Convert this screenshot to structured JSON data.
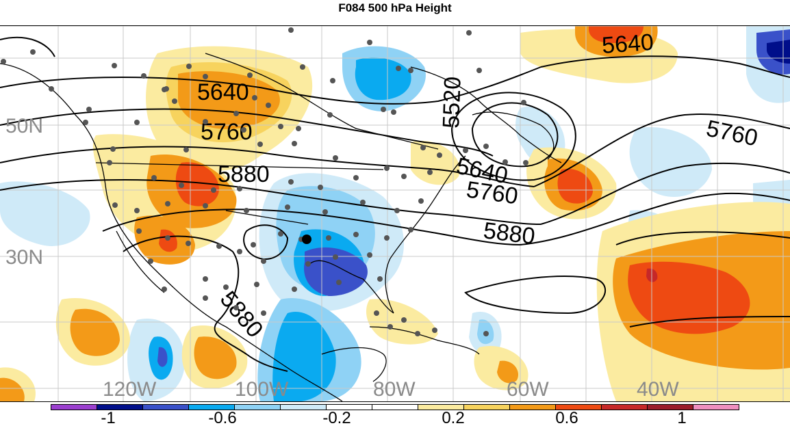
{
  "title": "F084 500 hPa Height",
  "lat_labels": [
    "50N",
    "30N"
  ],
  "lon_labels": [
    "120W",
    "100W",
    "80W",
    "60W",
    "40W"
  ],
  "contour_labels": [
    "5640",
    "5760",
    "5880",
    "5520",
    "5640",
    "5760",
    "5880",
    "5640",
    "5760",
    "5880"
  ],
  "colorbar": {
    "labels": [
      "-1",
      "-0.6",
      "-0.2",
      "0.2",
      "0.6",
      "1"
    ],
    "colors": [
      "#9b3fcf",
      "#000e8a",
      "#3a51c9",
      "#0aaaf0",
      "#8fd2f5",
      "#cfeaf8",
      "#ffffff",
      "#ffffff",
      "#fbeba0",
      "#f7d35e",
      "#f39a18",
      "#ee4a12",
      "#c62828",
      "#9b1d2a",
      "#ef8fbf"
    ]
  },
  "colors": {
    "neg_strong": "#3a51c9",
    "neg_mid": "#0aaaf0",
    "neg_weak": "#bfe3f7",
    "pos_weak": "#fbe9a0",
    "pos_mid": "#f39a18",
    "pos_strong": "#ee4a12",
    "station": "#555555"
  }
}
